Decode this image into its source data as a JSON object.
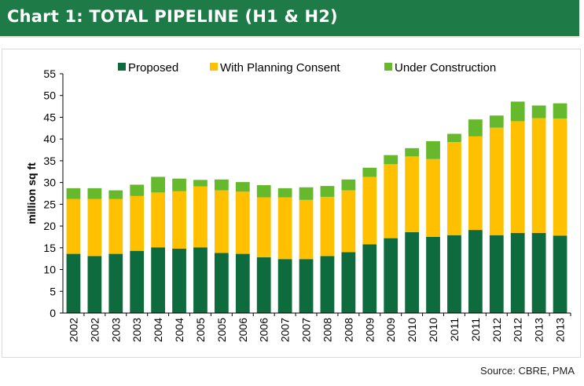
{
  "header": {
    "title": "Chart 1: TOTAL PIPELINE (H1 & H2)"
  },
  "source_label": "Source:",
  "source_text": "CBRE, PMA",
  "colors": {
    "header_bg": "#1e7a46",
    "proposed": "#0d6b3e",
    "consent": "#ffc000",
    "construction": "#66b82c"
  },
  "chart_data": {
    "type": "bar",
    "stacked": true,
    "title": "",
    "xlabel": "",
    "ylabel": "million sq ft",
    "ylim": [
      0,
      55
    ],
    "yticks": [
      0,
      5,
      10,
      15,
      20,
      25,
      30,
      35,
      40,
      45,
      50,
      55
    ],
    "grid": false,
    "legend_position": "top",
    "categories": [
      "2002",
      "2002",
      "2003",
      "2003",
      "2004",
      "2004",
      "2005",
      "2005",
      "2006",
      "2006",
      "2007",
      "2007",
      "2008",
      "2008",
      "2009",
      "2009",
      "2010",
      "2010",
      "2011",
      "2011",
      "2012",
      "2012",
      "2013",
      "2013"
    ],
    "series": [
      {
        "name": "Proposed",
        "color": "#0d6b3e",
        "values": [
          13.6,
          13.1,
          13.6,
          14.3,
          15.1,
          14.8,
          15.1,
          13.8,
          13.6,
          12.8,
          12.4,
          12.4,
          13.1,
          14.0,
          15.8,
          17.2,
          18.6,
          17.5,
          17.9,
          19.1,
          17.9,
          18.4,
          18.4,
          17.8
        ]
      },
      {
        "name": "With Planning Consent",
        "color": "#ffc000",
        "values": [
          12.6,
          13.1,
          12.6,
          12.6,
          12.6,
          13.2,
          14.0,
          14.4,
          14.3,
          13.8,
          14.2,
          13.6,
          13.6,
          14.2,
          15.5,
          17.0,
          17.4,
          17.9,
          21.4,
          21.5,
          24.7,
          25.7,
          26.4,
          26.9
        ]
      },
      {
        "name": "Under Construction",
        "color": "#66b82c",
        "values": [
          2.5,
          2.5,
          2.0,
          2.6,
          3.6,
          2.9,
          1.5,
          2.5,
          2.2,
          2.8,
          2.1,
          2.9,
          2.5,
          2.5,
          2.1,
          2.1,
          1.9,
          4.1,
          1.9,
          3.9,
          2.8,
          4.5,
          2.9,
          3.5
        ]
      }
    ]
  }
}
